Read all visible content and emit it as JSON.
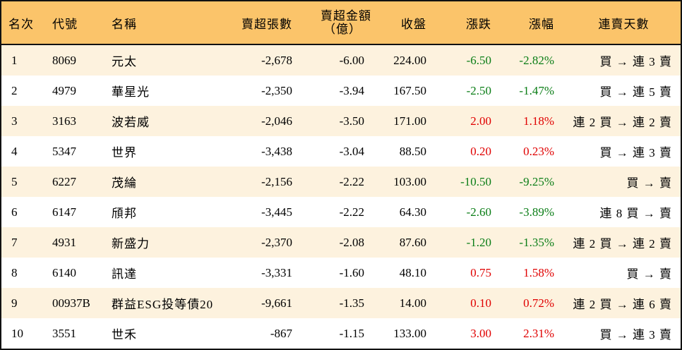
{
  "headers": {
    "rank": "名次",
    "code": "代號",
    "name": "名稱",
    "sell_volume": "賣超張數",
    "sell_amount_line1": "賣超金額",
    "sell_amount_line2": "（億）",
    "close": "收盤",
    "change": "漲跌",
    "change_pct": "漲幅",
    "streak": "連賣天數"
  },
  "colors": {
    "header_bg": "#fbc46a",
    "stripe_bg": "#fdf2de",
    "up": "#e00000",
    "down": "#0a7d16"
  },
  "rows": [
    {
      "rank": "1",
      "code": "8069",
      "name": "元太",
      "vol": "-2,678",
      "amt": "-6.00",
      "close": "224.00",
      "chg": "-6.50",
      "pct": "-2.82%",
      "dir": "down",
      "streak": "買 → 連 3 賣"
    },
    {
      "rank": "2",
      "code": "4979",
      "name": "華星光",
      "vol": "-2,350",
      "amt": "-3.94",
      "close": "167.50",
      "chg": "-2.50",
      "pct": "-1.47%",
      "dir": "down",
      "streak": "買 → 連 5 賣"
    },
    {
      "rank": "3",
      "code": "3163",
      "name": "波若威",
      "vol": "-2,046",
      "amt": "-3.50",
      "close": "171.00",
      "chg": "2.00",
      "pct": "1.18%",
      "dir": "up",
      "streak": "連 2 買 → 連 2 賣"
    },
    {
      "rank": "4",
      "code": "5347",
      "name": "世界",
      "vol": "-3,438",
      "amt": "-3.04",
      "close": "88.50",
      "chg": "0.20",
      "pct": "0.23%",
      "dir": "up",
      "streak": "買 → 連 3 賣"
    },
    {
      "rank": "5",
      "code": "6227",
      "name": "茂綸",
      "vol": "-2,156",
      "amt": "-2.22",
      "close": "103.00",
      "chg": "-10.50",
      "pct": "-9.25%",
      "dir": "down",
      "streak": "買 → 賣"
    },
    {
      "rank": "6",
      "code": "6147",
      "name": "頎邦",
      "vol": "-3,445",
      "amt": "-2.22",
      "close": "64.30",
      "chg": "-2.60",
      "pct": "-3.89%",
      "dir": "down",
      "streak": "連 8 買 → 賣"
    },
    {
      "rank": "7",
      "code": "4931",
      "name": "新盛力",
      "vol": "-2,370",
      "amt": "-2.08",
      "close": "87.60",
      "chg": "-1.20",
      "pct": "-1.35%",
      "dir": "down",
      "streak": "連 2 買 → 連 2 賣"
    },
    {
      "rank": "8",
      "code": "6140",
      "name": "訊達",
      "vol": "-3,331",
      "amt": "-1.60",
      "close": "48.10",
      "chg": "0.75",
      "pct": "1.58%",
      "dir": "up",
      "streak": "買 → 賣"
    },
    {
      "rank": "9",
      "code": "00937B",
      "name": "群益ESG投等債20",
      "vol": "-9,661",
      "amt": "-1.35",
      "close": "14.00",
      "chg": "0.10",
      "pct": "0.72%",
      "dir": "up",
      "streak": "連 2 買 → 連 6 賣"
    },
    {
      "rank": "10",
      "code": "3551",
      "name": "世禾",
      "vol": "-867",
      "amt": "-1.15",
      "close": "133.00",
      "chg": "3.00",
      "pct": "2.31%",
      "dir": "up",
      "streak": "買 → 連 3 賣"
    }
  ]
}
